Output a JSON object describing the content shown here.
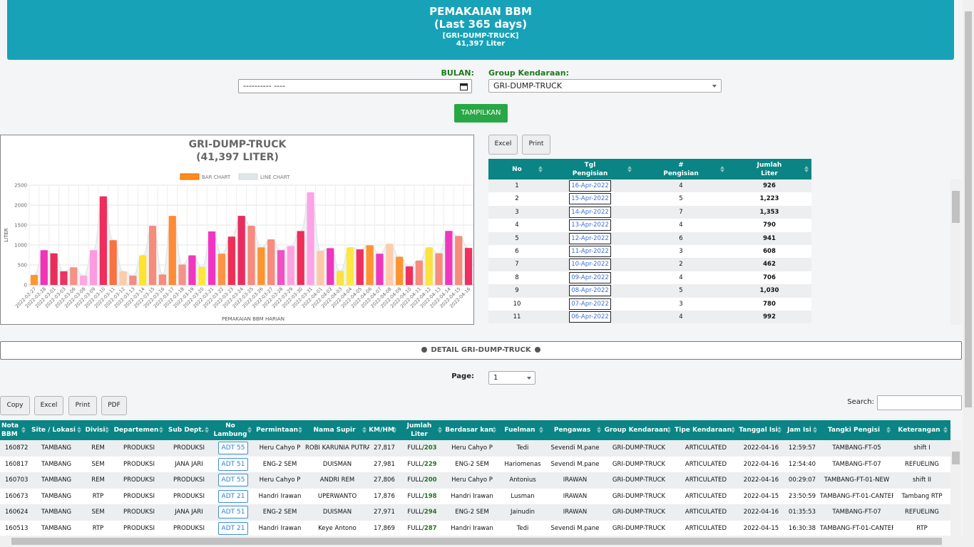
{
  "header": {
    "title": "PEMAKAIAN BBM",
    "subtitle": "(Last 365 days)",
    "group": "[GRI-DUMP-TRUCK]",
    "total": "41,397 Liter"
  },
  "form": {
    "bulan_label": "BULAN:",
    "bulan_value": "---------- ----",
    "group_label": "Group Kendaraan:",
    "group_value": "GRI-DUMP-TRUCK",
    "submit": "TAMPILKAN"
  },
  "chart_data": {
    "type": "bar",
    "title": "GRI-DUMP-TRUCK",
    "subtitle": "(41,397 LITER)",
    "y_label": "LITER",
    "x_label": "PEMAKAIAN BBM HARIAN",
    "legend": [
      {
        "name": "BAR CHART",
        "color": "#ff8c1a"
      },
      {
        "name": "LINE CHART",
        "color": "#dfe8e8"
      }
    ],
    "categories": [
      "2022-02-27",
      "2022-02-28",
      "2022-03-01",
      "2022-03-03",
      "2022-03-06",
      "2022-03-08",
      "2022-03-09",
      "2022-03-10",
      "2022-03-11",
      "2022-03-12",
      "2022-03-13",
      "2022-03-14",
      "2022-03-15",
      "2022-03-16",
      "2022-03-17",
      "2022-03-18",
      "2022-03-19",
      "2022-03-20",
      "2022-03-21",
      "2022-03-22",
      "2022-03-23",
      "2022-03-24",
      "2022-03-25",
      "2022-03-26",
      "2022-03-27",
      "2022-03-28",
      "2022-03-29",
      "2022-03-30",
      "2022-03-31",
      "2022-04-01",
      "2022-04-02",
      "2022-04-03",
      "2022-04-04",
      "2022-04-05",
      "2022-04-06",
      "2022-04-07",
      "2022-04-08",
      "2022-04-09",
      "2022-04-10",
      "2022-04-11",
      "2022-04-12",
      "2022-04-13",
      "2022-04-14",
      "2022-04-15",
      "2022-04-16"
    ],
    "values": [
      250,
      870,
      790,
      340,
      440,
      230,
      870,
      2220,
      1120,
      340,
      230,
      740,
      1480,
      260,
      1730,
      510,
      740,
      450,
      1340,
      780,
      1210,
      1730,
      1480,
      940,
      1140,
      870,
      970,
      1350,
      2320,
      850,
      920,
      350,
      940,
      890,
      992,
      780,
      1030,
      706,
      462,
      608,
      941,
      790,
      1353,
      1223,
      926
    ],
    "colors": [
      "#ff8c1a",
      "#f01fb0",
      "#e8174a",
      "#ec1f4f",
      "#f4877a",
      "#ff9ee0",
      "#ff90dd",
      "#f0174d",
      "#fb6330",
      "#ffc7a1",
      "#f58077",
      "#ffe11a",
      "#f6816f",
      "#f6816f",
      "#ff8020",
      "#f7877d",
      "#ef22b8",
      "#ffe52a",
      "#f020c0",
      "#ff8a30",
      "#ee1947",
      "#e81650",
      "#f78070",
      "#ff8a1a",
      "#f7806f",
      "#f23ec0",
      "#ff9ae0",
      "#ee1747",
      "#ff9ae6",
      "#ffc3a0",
      "#ee22b8",
      "#ffe02a",
      "#ffe52a",
      "#ee1a50",
      "#ff8a1a",
      "#ee22b8",
      "#ffc8a4",
      "#ff8a1a",
      "#ee1a50",
      "#f7806f",
      "#ffe02a",
      "#f7806f",
      "#ee22b8",
      "#f7806f",
      "#ee1a50"
    ],
    "ylim": [
      0,
      2500
    ],
    "yticks": [
      0,
      500,
      1000,
      1500,
      2000,
      2500
    ],
    "grid": true
  },
  "summary": {
    "buttons": [
      "Excel",
      "Print"
    ],
    "headers": [
      "No",
      "Tgl\nPengisian",
      "#\nPengisian",
      "Jumlah\nLiter"
    ],
    "rows": [
      [
        "1",
        "16-Apr-2022",
        "4",
        "926"
      ],
      [
        "2",
        "15-Apr-2022",
        "5",
        "1,223"
      ],
      [
        "3",
        "14-Apr-2022",
        "7",
        "1,353"
      ],
      [
        "4",
        "13-Apr-2022",
        "4",
        "790"
      ],
      [
        "5",
        "12-Apr-2022",
        "6",
        "941"
      ],
      [
        "6",
        "11-Apr-2022",
        "3",
        "608"
      ],
      [
        "7",
        "10-Apr-2022",
        "2",
        "462"
      ],
      [
        "8",
        "09-Apr-2022",
        "4",
        "706"
      ],
      [
        "9",
        "08-Apr-2022",
        "5",
        "1,030"
      ],
      [
        "10",
        "07-Apr-2022",
        "3",
        "780"
      ],
      [
        "11",
        "06-Apr-2022",
        "4",
        "992"
      ]
    ]
  },
  "detail": {
    "title": "DETAIL GRI-DUMP-TRUCK",
    "page_label": "Page:",
    "page_value": "1",
    "buttons": [
      "Copy",
      "Excel",
      "Print",
      "PDF"
    ],
    "search_label": "Search:",
    "headers": [
      "Nota\nBBM",
      "Site / Lokasi",
      "Divisi",
      "Departemen",
      "Sub Dept.",
      "No\nLambung",
      "Permintaan",
      "Nama Supir",
      "KM/HM",
      "Jumlah\nLiter",
      "Berdasar kan",
      "Fuelman",
      "Pengawas",
      "Group Kendaraan",
      "Tipe Kendaraan",
      "Tanggal Isi",
      "Jam Isi",
      "Tangki Pengisi",
      "Keterangan"
    ],
    "rows": [
      [
        "160872",
        "TAMBANG",
        "REM",
        "PRODUKSI",
        "PRODUKSI",
        "ADT 55",
        "Heru Cahyo P",
        "ROBI KARUNIA PUTRA",
        "27,817",
        {
          "mode": "FULL/",
          "liter": "203"
        },
        "Heru Cahyo P",
        "Tedi",
        "Sevendi M.pane",
        "GRI-DUMP-TRUCK",
        "ARTICULATED",
        "2022-04-16",
        "12:59:57",
        "TAMBANG-FT-05",
        "shift I"
      ],
      [
        "160817",
        "TAMBANG",
        "SEM",
        "PRODUKSI",
        "JANA JARI",
        "ADT 51",
        "ENG-2 SEM",
        "DUISMAN",
        "27,981",
        {
          "mode": "FULL/",
          "liter": "229"
        },
        "ENG-2 SEM",
        "Hariomenas",
        "Sevendi M.pane",
        "GRI-DUMP-TRUCK",
        "ARTICULATED",
        "2022-04-16",
        "12:54:40",
        "TAMBANG-FT-07",
        "REFUELING"
      ],
      [
        "160703",
        "TAMBANG",
        "REM",
        "PRODUKSI",
        "PRODUKSI",
        "ADT 55",
        "Heru Cahyo P",
        "ANDRI REM",
        "27,806",
        {
          "mode": "FULL/",
          "liter": "200"
        },
        "Heru Cahyo P",
        "Antonius",
        "IRAWAN",
        "GRI-DUMP-TRUCK",
        "ARTICULATED",
        "2022-04-16",
        "00:29:07",
        "TAMBANG-FT-01-NEW",
        "shift II"
      ],
      [
        "160673",
        "TAMBANG",
        "RTP",
        "PRODUKSI",
        "PRODUKSI",
        "ADT 21",
        "Handri Irawan",
        "UPERWANTO",
        "17,876",
        {
          "mode": "FULL/",
          "liter": "198"
        },
        "Handri Irawan",
        "Lusman",
        "IRAWAN",
        "GRI-DUMP-TRUCK",
        "ARTICULATED",
        "2022-04-15",
        "23:50:59",
        "TAMBANG-FT-01-CANTER",
        "Tambang RTP"
      ],
      [
        "160624",
        "TAMBANG",
        "SEM",
        "PRODUKSI",
        "JANA JARI",
        "ADT 51",
        "ENG-2 SEM",
        "DUISMAN",
        "27,971",
        {
          "mode": "FULL/",
          "liter": "294"
        },
        "ENG-2 SEM",
        "Jainudin",
        "IRAWAN",
        "GRI-DUMP-TRUCK",
        "ARTICULATED",
        "2022-04-16",
        "01:35:53",
        "TAMBANG-FT-07",
        "REFUELING"
      ],
      [
        "160513",
        "TAMBANG",
        "RTP",
        "PRODUKSI",
        "PRODUKSI",
        "ADT 21",
        "Handri Irawan",
        "Keye Antono",
        "17,869",
        {
          "mode": "FULL/",
          "liter": "287"
        },
        "Handri Irawan",
        "Tedi",
        "Sevendi M.pane",
        "GRI-DUMP-TRUCK",
        "ARTICULATED",
        "2022-04-15",
        "16:30:38",
        "TAMBANG-FT-01-CANTER",
        "RTP"
      ]
    ]
  }
}
